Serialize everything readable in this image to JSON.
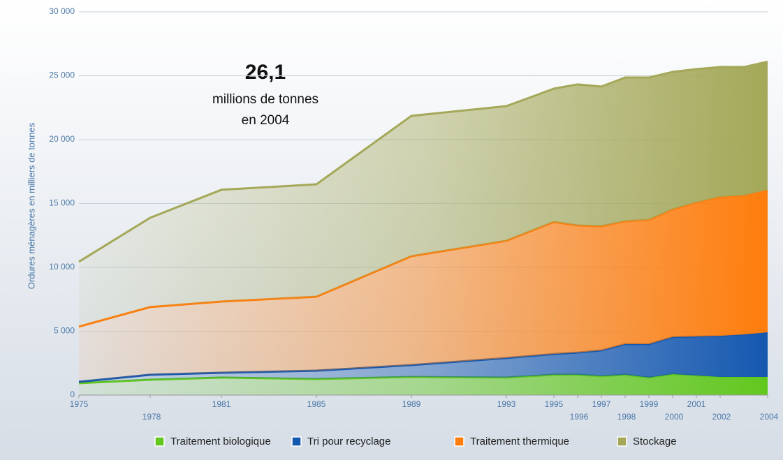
{
  "chart_data": {
    "type": "stacked_area",
    "y_label": "Ordures ménagères en milliers de tonnes",
    "annotation": {
      "value": "26,1",
      "line1": "millions de tonnes",
      "line2": "en 2004"
    },
    "x": [
      1975,
      1978,
      1981,
      1985,
      1989,
      1993,
      1995,
      1996,
      1997,
      1998,
      1999,
      2000,
      2001,
      2002,
      2003,
      2004
    ],
    "xlim": [
      1975,
      2004
    ],
    "xticks": [
      1975,
      1978,
      1981,
      1985,
      1989,
      1993,
      1995,
      1996,
      1997,
      1998,
      1999,
      2000,
      2001,
      2002,
      2004
    ],
    "ylim": [
      0,
      30000
    ],
    "yticks": [
      0,
      {
        "value": 5000,
        "label": "5 000"
      },
      {
        "value": 10000,
        "label": "10 000"
      },
      {
        "value": 15000,
        "label": "15 000"
      },
      {
        "value": 20000,
        "label": "20 000"
      },
      {
        "value": 25000,
        "label": "25 000"
      },
      {
        "value": 30000,
        "label": "30 000"
      }
    ],
    "grid": true,
    "series": [
      {
        "name": "Traitement biologique",
        "color": "#62c81e",
        "values": [
          930,
          1200,
          1370,
          1260,
          1420,
          1370,
          1590,
          1590,
          1480,
          1590,
          1370,
          1640,
          1530,
          1420,
          1420,
          1420
        ]
      },
      {
        "name": "Tri pour recyclage",
        "color": "#1558b0",
        "values": [
          110,
          390,
          380,
          650,
          930,
          1530,
          1630,
          1740,
          2020,
          2400,
          2620,
          2900,
          3060,
          3220,
          3330,
          3500
        ]
      },
      {
        "name": "Traitement thermique",
        "color": "#ff7d0c",
        "values": [
          4320,
          5300,
          5570,
          5790,
          8520,
          9180,
          10330,
          9950,
          9720,
          9620,
          9730,
          10000,
          10490,
          10880,
          10880,
          11150
        ]
      },
      {
        "name": "Stockage",
        "color": "#a4a858",
        "values": [
          5080,
          6990,
          8750,
          8800,
          10990,
          10540,
          10440,
          11040,
          10930,
          11250,
          11140,
          10760,
          10440,
          10160,
          10050,
          10030
        ]
      }
    ]
  }
}
